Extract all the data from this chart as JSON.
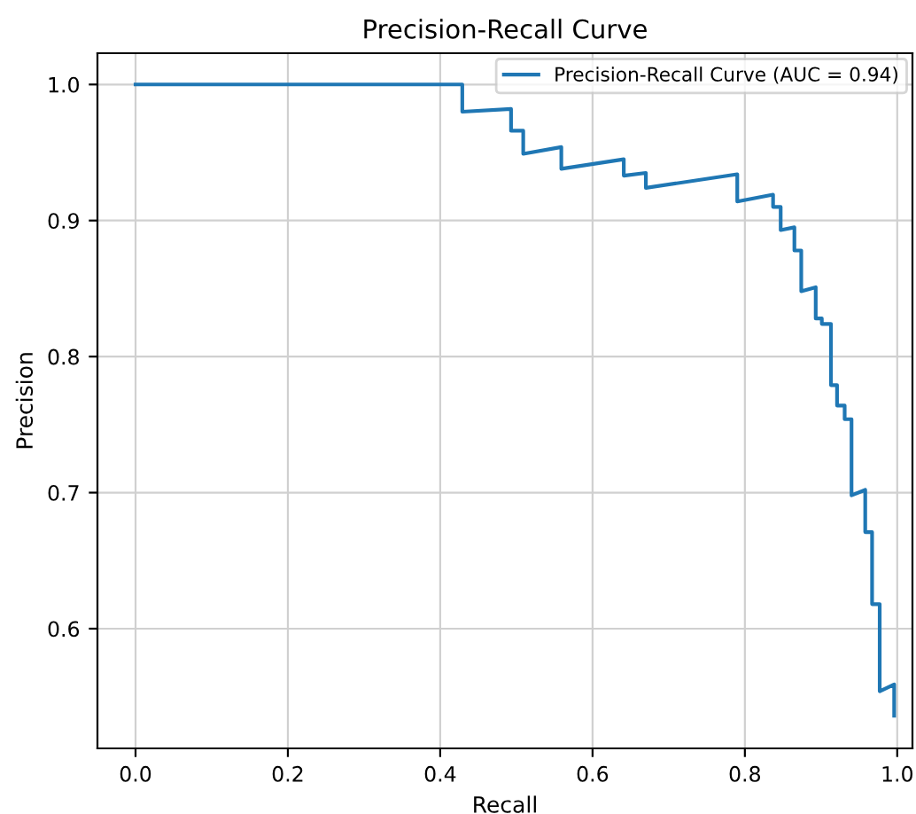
{
  "chart_data": {
    "type": "line",
    "title": "Precision-Recall Curve",
    "xlabel": "Recall",
    "ylabel": "Precision",
    "series": [
      {
        "name": "Precision-Recall Curve (AUC = 0.94)",
        "color": "#1f77b4",
        "x": [
          0.0,
          0.429,
          0.429,
          0.493,
          0.493,
          0.509,
          0.509,
          0.559,
          0.559,
          0.641,
          0.641,
          0.67,
          0.67,
          0.79,
          0.79,
          0.837,
          0.837,
          0.847,
          0.847,
          0.865,
          0.865,
          0.874,
          0.874,
          0.893,
          0.893,
          0.901,
          0.901,
          0.913,
          0.913,
          0.921,
          0.921,
          0.931,
          0.931,
          0.94,
          0.94,
          0.958,
          0.958,
          0.967,
          0.967,
          0.977,
          0.977,
          0.996,
          0.996
        ],
        "values": [
          1.0,
          1.0,
          0.98,
          0.982,
          0.966,
          0.966,
          0.949,
          0.954,
          0.938,
          0.945,
          0.933,
          0.935,
          0.924,
          0.934,
          0.914,
          0.919,
          0.91,
          0.91,
          0.893,
          0.895,
          0.878,
          0.878,
          0.848,
          0.851,
          0.828,
          0.828,
          0.824,
          0.824,
          0.779,
          0.779,
          0.764,
          0.764,
          0.754,
          0.754,
          0.698,
          0.702,
          0.671,
          0.671,
          0.618,
          0.618,
          0.554,
          0.559,
          0.536
        ]
      }
    ],
    "xlim": [
      -0.05,
      1.02
    ],
    "ylim": [
      0.512,
      1.023
    ],
    "xticks": [
      {
        "value": 0.0,
        "label": "0.0"
      },
      0.2,
      0.4,
      0.6,
      0.8,
      {
        "value": 1.0,
        "label": "1.0"
      }
    ],
    "yticks": [
      {
        "value": 0.6,
        "label": "0.6"
      },
      0.7,
      0.8,
      0.9,
      {
        "value": 1.0,
        "label": "1.0"
      }
    ],
    "grid": true,
    "legend": "top right",
    "marker": "none",
    "line_style": "solid"
  }
}
